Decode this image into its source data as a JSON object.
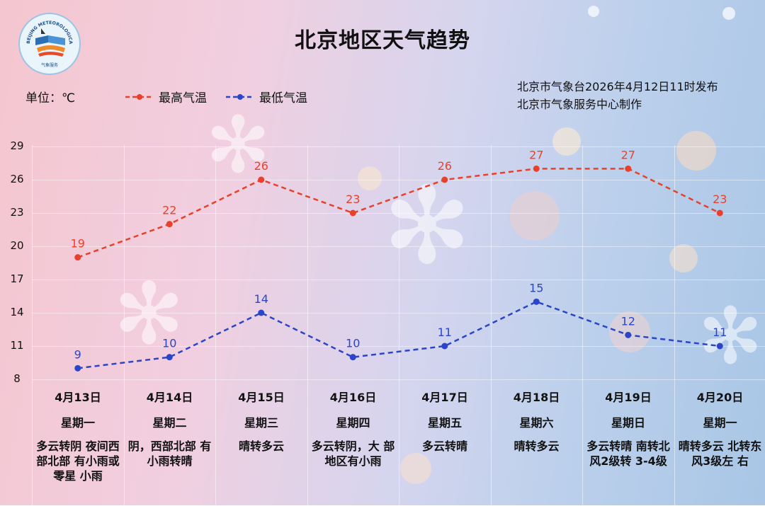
{
  "title": "北京地区天气趋势",
  "unit_label": "单位：℃",
  "issuer": {
    "line1": "北京市气象台2026年4月12日11时发布",
    "line2": "北京市气象服务中心制作"
  },
  "logo": {
    "ring_text": "BEIJING METEOROLOGICAL SERVICE",
    "cn_text": "气象服务",
    "icon": "beijing-meteorological-service-logo"
  },
  "colors": {
    "high": "#e8412b",
    "low": "#2b45c8",
    "bg_left": "#f4c6cf",
    "bg_right": "#a9c6e6"
  },
  "chart_data": {
    "type": "line",
    "y_ticks": [
      29,
      26,
      23,
      20,
      17,
      14,
      11,
      8
    ],
    "ylim": [
      8,
      29
    ],
    "grid": true,
    "legend_placement": "top-left",
    "categories": [
      "4月13日",
      "4月14日",
      "4月15日",
      "4月16日",
      "4月17日",
      "4月18日",
      "4月19日",
      "4月20日"
    ],
    "weekdays": [
      "星期一",
      "星期二",
      "星期三",
      "星期四",
      "星期五",
      "星期六",
      "星期日",
      "星期一"
    ],
    "conditions": [
      "多云转阴 夜间西部北部 有小雨或零星 小雨",
      "阴，西部北部 有小雨转晴",
      "晴转多云",
      "多云转阴，大 部地区有小雨",
      "多云转晴",
      "晴转多云",
      "多云转晴 南转北风2级转 3-4级",
      "晴转多云 北转东风3级左 右"
    ],
    "series": [
      {
        "name": "最高气温",
        "values": [
          19,
          22,
          26,
          23,
          26,
          27,
          27,
          23
        ]
      },
      {
        "name": "最低气温",
        "values": [
          9,
          10,
          14,
          10,
          11,
          15,
          12,
          11
        ]
      }
    ]
  }
}
